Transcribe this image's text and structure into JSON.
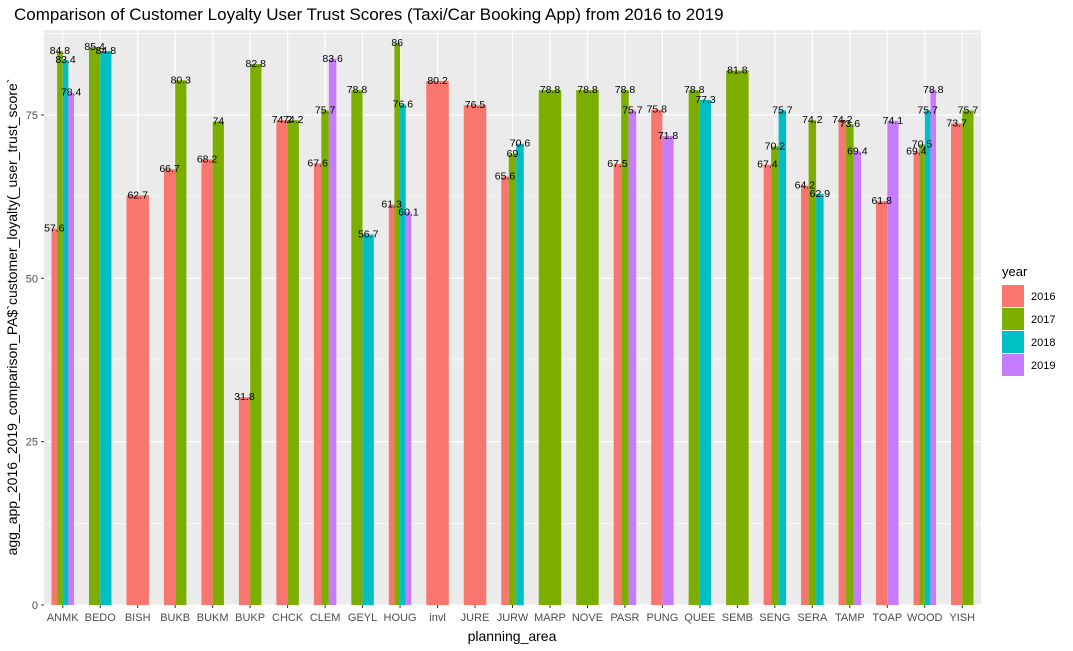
{
  "chart_data": {
    "type": "bar",
    "title": "Comparison of Customer Loyalty User Trust Scores (Taxi/Car Booking App) from 2016 to 2019",
    "xlabel": "planning_area",
    "ylabel": "agg_app_2016_2019_comparison_PA$`customer_loyalty(_user_trust_score`",
    "ylim": [
      0,
      88
    ],
    "yticks": [
      0,
      25,
      50,
      75
    ],
    "grid": true,
    "legend_position": "right",
    "legend_title": "year",
    "categories": [
      "ANMK",
      "BEDO",
      "BISH",
      "BUKB",
      "BUKM",
      "BUKP",
      "CHCK",
      "CLEM",
      "GEYL",
      "HOUG",
      "invl",
      "JURE",
      "JURW",
      "MARP",
      "NOVE",
      "PASR",
      "PUNG",
      "QUEE",
      "SEMB",
      "SENG",
      "SERA",
      "TAMP",
      "TOAP",
      "WOOD",
      "YISH"
    ],
    "series": [
      {
        "name": "2016",
        "color": "#F8766D",
        "values": [
          57.6,
          null,
          62.7,
          66.7,
          68.2,
          31.8,
          74.2,
          67.6,
          null,
          61.3,
          80.2,
          76.5,
          65.6,
          null,
          null,
          67.5,
          75.8,
          null,
          null,
          67.4,
          64.2,
          74.2,
          61.8,
          69.4,
          73.7
        ]
      },
      {
        "name": "2017",
        "color": "#7CAE00",
        "values": [
          84.8,
          85.4,
          null,
          80.3,
          74,
          82.8,
          74.2,
          75.7,
          78.8,
          86,
          null,
          null,
          69,
          78.8,
          78.8,
          78.8,
          null,
          78.8,
          81.8,
          70.2,
          74.2,
          73.6,
          null,
          70.5,
          75.7
        ]
      },
      {
        "name": "2018",
        "color": "#00BFC4",
        "values": [
          83.4,
          84.8,
          null,
          null,
          null,
          null,
          null,
          null,
          56.7,
          76.6,
          null,
          null,
          70.6,
          null,
          null,
          null,
          null,
          77.3,
          null,
          75.7,
          62.9,
          null,
          null,
          75.7,
          null
        ]
      },
      {
        "name": "2019",
        "color": "#C77CFF",
        "values": [
          78.4,
          null,
          null,
          null,
          null,
          null,
          null,
          83.6,
          null,
          60.1,
          null,
          null,
          null,
          null,
          null,
          75.7,
          71.8,
          null,
          null,
          null,
          null,
          69.4,
          74.1,
          78.8,
          null
        ]
      }
    ]
  }
}
